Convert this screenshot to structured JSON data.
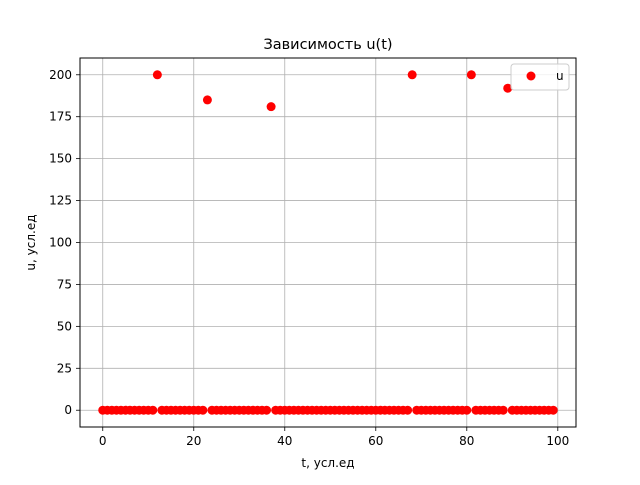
{
  "chart_data": {
    "type": "scatter",
    "title": "Зависимость u(t)",
    "xlabel": "t, усл.ед",
    "ylabel": "u, усл.ед",
    "xlim": [
      -5,
      104
    ],
    "ylim": [
      -10,
      210
    ],
    "xticks": [
      0,
      20,
      40,
      60,
      80,
      100
    ],
    "yticks": [
      0,
      25,
      50,
      75,
      100,
      125,
      150,
      175,
      200
    ],
    "grid": true,
    "legend_position": "top-right",
    "series": [
      {
        "name": "u",
        "color": "#ff0000",
        "marker": "circle",
        "points": [
          [
            0,
            0
          ],
          [
            1,
            0
          ],
          [
            2,
            0
          ],
          [
            3,
            0
          ],
          [
            4,
            0
          ],
          [
            5,
            0
          ],
          [
            6,
            0
          ],
          [
            7,
            0
          ],
          [
            8,
            0
          ],
          [
            9,
            0
          ],
          [
            10,
            0
          ],
          [
            11,
            0
          ],
          [
            12,
            200
          ],
          [
            13,
            0
          ],
          [
            14,
            0
          ],
          [
            15,
            0
          ],
          [
            16,
            0
          ],
          [
            17,
            0
          ],
          [
            18,
            0
          ],
          [
            19,
            0
          ],
          [
            20,
            0
          ],
          [
            21,
            0
          ],
          [
            22,
            0
          ],
          [
            23,
            185
          ],
          [
            24,
            0
          ],
          [
            25,
            0
          ],
          [
            26,
            0
          ],
          [
            27,
            0
          ],
          [
            28,
            0
          ],
          [
            29,
            0
          ],
          [
            30,
            0
          ],
          [
            31,
            0
          ],
          [
            32,
            0
          ],
          [
            33,
            0
          ],
          [
            34,
            0
          ],
          [
            35,
            0
          ],
          [
            36,
            0
          ],
          [
            37,
            181
          ],
          [
            38,
            0
          ],
          [
            39,
            0
          ],
          [
            40,
            0
          ],
          [
            41,
            0
          ],
          [
            42,
            0
          ],
          [
            43,
            0
          ],
          [
            44,
            0
          ],
          [
            45,
            0
          ],
          [
            46,
            0
          ],
          [
            47,
            0
          ],
          [
            48,
            0
          ],
          [
            49,
            0
          ],
          [
            50,
            0
          ],
          [
            51,
            0
          ],
          [
            52,
            0
          ],
          [
            53,
            0
          ],
          [
            54,
            0
          ],
          [
            55,
            0
          ],
          [
            56,
            0
          ],
          [
            57,
            0
          ],
          [
            58,
            0
          ],
          [
            59,
            0
          ],
          [
            60,
            0
          ],
          [
            61,
            0
          ],
          [
            62,
            0
          ],
          [
            63,
            0
          ],
          [
            64,
            0
          ],
          [
            65,
            0
          ],
          [
            66,
            0
          ],
          [
            67,
            0
          ],
          [
            68,
            200
          ],
          [
            69,
            0
          ],
          [
            70,
            0
          ],
          [
            71,
            0
          ],
          [
            72,
            0
          ],
          [
            73,
            0
          ],
          [
            74,
            0
          ],
          [
            75,
            0
          ],
          [
            76,
            0
          ],
          [
            77,
            0
          ],
          [
            78,
            0
          ],
          [
            79,
            0
          ],
          [
            80,
            0
          ],
          [
            81,
            200
          ],
          [
            82,
            0
          ],
          [
            83,
            0
          ],
          [
            84,
            0
          ],
          [
            85,
            0
          ],
          [
            86,
            0
          ],
          [
            87,
            0
          ],
          [
            88,
            0
          ],
          [
            89,
            192
          ],
          [
            90,
            0
          ],
          [
            91,
            0
          ],
          [
            92,
            0
          ],
          [
            93,
            0
          ],
          [
            94,
            0
          ],
          [
            95,
            0
          ],
          [
            96,
            0
          ],
          [
            97,
            0
          ],
          [
            98,
            0
          ],
          [
            99,
            0
          ]
        ]
      }
    ]
  }
}
